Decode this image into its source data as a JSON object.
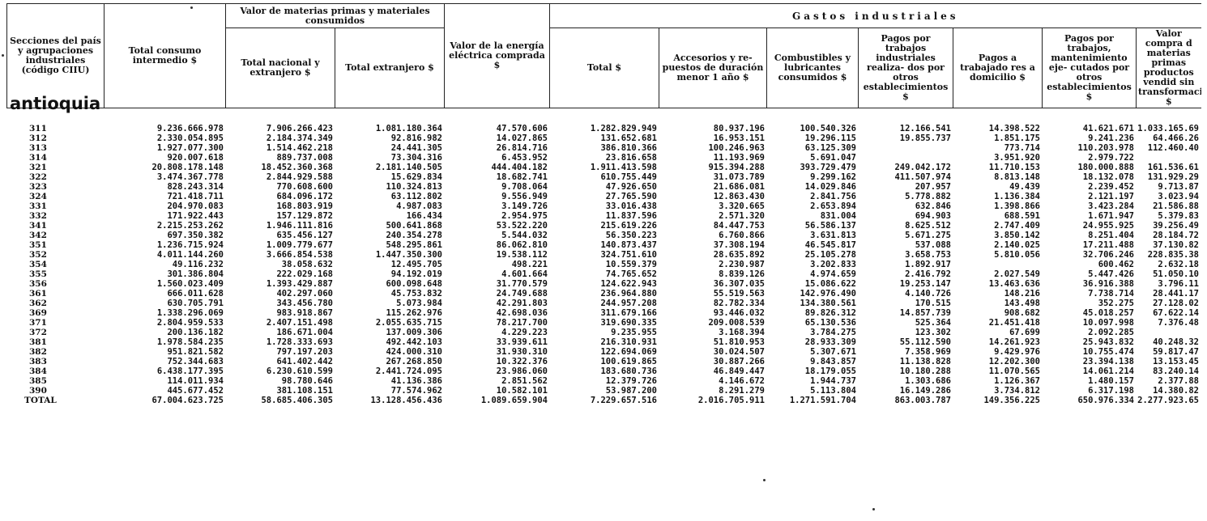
{
  "header": {
    "sections": "Secciones del país y agrupaciones industriales (código CIIU)",
    "total_consumo": "Total consumo intermedio $",
    "valor_materias": "Valor de materias primas y materiales consumidos",
    "total_nacional": "Total nacional y extranjero $",
    "total_extranjero": "Total extranjero $",
    "valor_energia": "Valor de la energía eléctrica comprada $",
    "gastos": "Gastos industriales",
    "gastos_total": "Total $",
    "accesorios": "Accesorios y re- puestos de duración menor 1 año $",
    "combustibles": "Combustibles y lubricantes consumidos $",
    "pagos_trabajos": "Pagos por trabajos industriales realiza- dos por otros establecimientos $",
    "pagos_domicilio": "Pagos a trabajado res a domicilio $",
    "pagos_mantenimiento": "Pagos por trabajos, mantenimiento eje- cutados por otros establecimientos $",
    "valor_compra": "Valor compra d materias primas productos vendid sin transformaci $"
  },
  "region": "antioquia",
  "rows": [
    [
      "311",
      "9.236.666.978",
      "7.906.266.423",
      "1.081.180.364",
      "47.570.606",
      "1.282.829.949",
      "80.937.196",
      "100.540.326",
      "12.166.541",
      "14.398.522",
      "41.621.671",
      "1.033.165.69"
    ],
    [
      "312",
      "2.330.054.895",
      "2.184.374.349",
      "92.816.982",
      "14.027.865",
      "131.652.681",
      "16.953.151",
      "19.296.115",
      "19.855.737",
      "1.851.175",
      "9.241.236",
      "64.466.26"
    ],
    [
      "313",
      "1.927.077.300",
      "1.514.462.218",
      "24.441.305",
      "26.814.716",
      "386.810.366",
      "100.246.963",
      "63.125.309",
      "",
      "773.714",
      "110.203.978",
      "112.460.40"
    ],
    [
      "314",
      "920.007.618",
      "889.737.008",
      "73.304.316",
      "6.453.952",
      "23.816.658",
      "11.193.969",
      "5.691.047",
      "",
      "3.951.920",
      "2.979.722",
      ""
    ],
    [
      "321",
      "20.808.178.148",
      "18.452.360.368",
      "2.181.140.505",
      "444.404.182",
      "1.911.413.598",
      "915.394.288",
      "393.729.479",
      "249.042.172",
      "11.710.153",
      "180.000.888",
      "161.536.61"
    ],
    [
      "322",
      "3.474.367.778",
      "2.844.929.588",
      "15.629.834",
      "18.682.741",
      "610.755.449",
      "31.073.789",
      "9.299.162",
      "411.507.974",
      "8.813.148",
      "18.132.078",
      "131.929.29"
    ],
    [
      "323",
      "828.243.314",
      "770.608.600",
      "110.324.813",
      "9.708.064",
      "47.926.650",
      "21.686.081",
      "14.029.846",
      "207.957",
      "49.439",
      "2.239.452",
      "9.713.87"
    ],
    [
      "324",
      "721.418.711",
      "684.096.172",
      "63.112.802",
      "9.556.949",
      "27.765.590",
      "12.863.430",
      "2.841.756",
      "5.778.882",
      "1.136.384",
      "2.121.197",
      "3.023.94"
    ],
    [
      "331",
      "204.970.083",
      "168.803.919",
      "4.987.083",
      "3.149.726",
      "33.016.438",
      "3.320.665",
      "2.653.894",
      "632.846",
      "1.398.866",
      "3.423.284",
      "21.586.88"
    ],
    [
      "332",
      "171.922.443",
      "157.129.872",
      "166.434",
      "2.954.975",
      "11.837.596",
      "2.571.320",
      "831.004",
      "694.903",
      "688.591",
      "1.671.947",
      "5.379.83"
    ],
    [
      "341",
      "2.215.253.262",
      "1.946.111.816",
      "500.641.868",
      "53.522.220",
      "215.619.226",
      "84.447.753",
      "56.586.137",
      "8.625.512",
      "2.747.409",
      "24.955.925",
      "39.256.49"
    ],
    [
      "342",
      "697.350.382",
      "635.456.127",
      "240.354.278",
      "5.544.032",
      "56.350.223",
      "6.760.866",
      "3.631.813",
      "5.671.275",
      "3.850.142",
      "8.251.404",
      "28.184.72"
    ],
    [
      "351",
      "1.236.715.924",
      "1.009.779.677",
      "548.295.861",
      "86.062.810",
      "140.873.437",
      "37.308.194",
      "46.545.817",
      "537.088",
      "2.140.025",
      "17.211.488",
      "37.130.82"
    ],
    [
      "352",
      "4.011.144.260",
      "3.666.854.538",
      "1.447.350.300",
      "19.538.112",
      "324.751.610",
      "28.635.892",
      "25.105.278",
      "3.658.753",
      "5.810.056",
      "32.706.246",
      "228.835.38"
    ],
    [
      "354",
      "49.116.232",
      "38.058.632",
      "12.495.705",
      "498.221",
      "10.559.379",
      "2.230.987",
      "3.202.833",
      "1.892.917",
      "",
      "600.462",
      "2.632.18"
    ],
    [
      "355",
      "301.386.804",
      "222.029.168",
      "94.192.019",
      "4.601.664",
      "74.765.652",
      "8.839.126",
      "4.974.659",
      "2.416.792",
      "2.027.549",
      "5.447.426",
      "51.050.10"
    ],
    [
      "356",
      "1.560.023.409",
      "1.393.429.887",
      "600.098.648",
      "31.770.579",
      "124.622.943",
      "36.307.035",
      "15.086.622",
      "19.253.147",
      "13.463.636",
      "36.916.388",
      "3.796.11"
    ],
    [
      "361",
      "666.011.628",
      "402.297.060",
      "45.753.832",
      "24.749.688",
      "236.964.880",
      "55.519.563",
      "142.976.490",
      "4.140.726",
      "148.216",
      "7.738.714",
      "28.441.17"
    ],
    [
      "362",
      "630.705.791",
      "343.456.780",
      "5.073.984",
      "42.291.803",
      "244.957.208",
      "82.782.334",
      "134.380.561",
      "170.515",
      "143.498",
      "352.275",
      "27.128.02"
    ],
    [
      "369",
      "1.338.296.069",
      "983.918.867",
      "115.262.976",
      "42.698.036",
      "311.679.166",
      "93.446.032",
      "89.826.312",
      "14.857.739",
      "908.682",
      "45.018.257",
      "67.622.14"
    ],
    [
      "371",
      "2.804.959.533",
      "2.407.151.498",
      "2.055.635.715",
      "78.217.700",
      "319.690.335",
      "209.008.539",
      "65.130.536",
      "525.364",
      "21.451.418",
      "10.097.998",
      "7.376.48"
    ],
    [
      "372",
      "200.136.182",
      "186.671.004",
      "137.009.306",
      "4.229.223",
      "9.235.955",
      "3.168.394",
      "3.784.275",
      "123.302",
      "67.699",
      "2.092.285",
      ""
    ],
    [
      "381",
      "1.978.584.235",
      "1.728.333.693",
      "492.442.103",
      "33.939.611",
      "216.310.931",
      "51.810.953",
      "28.933.309",
      "55.112.590",
      "14.261.923",
      "25.943.832",
      "40.248.32"
    ],
    [
      "382",
      "951.821.582",
      "797.197.203",
      "424.000.310",
      "31.930.310",
      "122.694.069",
      "30.024.507",
      "5.307.671",
      "7.358.969",
      "9.429.976",
      "10.755.474",
      "59.817.47"
    ],
    [
      "383",
      "752.344.683",
      "641.402.442",
      "267.268.850",
      "10.322.376",
      "100.619.865",
      "30.887.266",
      "9.843.857",
      "11.138.828",
      "12.202.300",
      "23.394.138",
      "13.153.45"
    ],
    [
      "384",
      "6.438.177.395",
      "6.230.610.599",
      "2.441.724.095",
      "23.986.060",
      "183.680.736",
      "46.849.447",
      "18.179.055",
      "10.180.288",
      "11.070.565",
      "14.061.214",
      "83.240.14"
    ],
    [
      "385",
      "114.011.934",
      "98.780.646",
      "41.136.386",
      "2.851.562",
      "12.379.726",
      "4.146.672",
      "1.944.737",
      "1.303.686",
      "1.126.367",
      "1.480.157",
      "2.377.88"
    ],
    [
      "390",
      "445.677.452",
      "381.108.151",
      "77.574.962",
      "10.582.101",
      "53.987.200",
      "8.291.279",
      "5.113.804",
      "16.149.286",
      "3.734.812",
      "6.317.198",
      "14.380.82"
    ]
  ],
  "total": [
    "TOTAL",
    "67.004.623.725",
    "58.685.406.305",
    "13.128.456.436",
    "1.089.659.904",
    "7.229.657.516",
    "2.016.705.911",
    "1.271.591.704",
    "863.003.787",
    "149.356.225",
    "650.976.334",
    "2.277.923.65"
  ]
}
